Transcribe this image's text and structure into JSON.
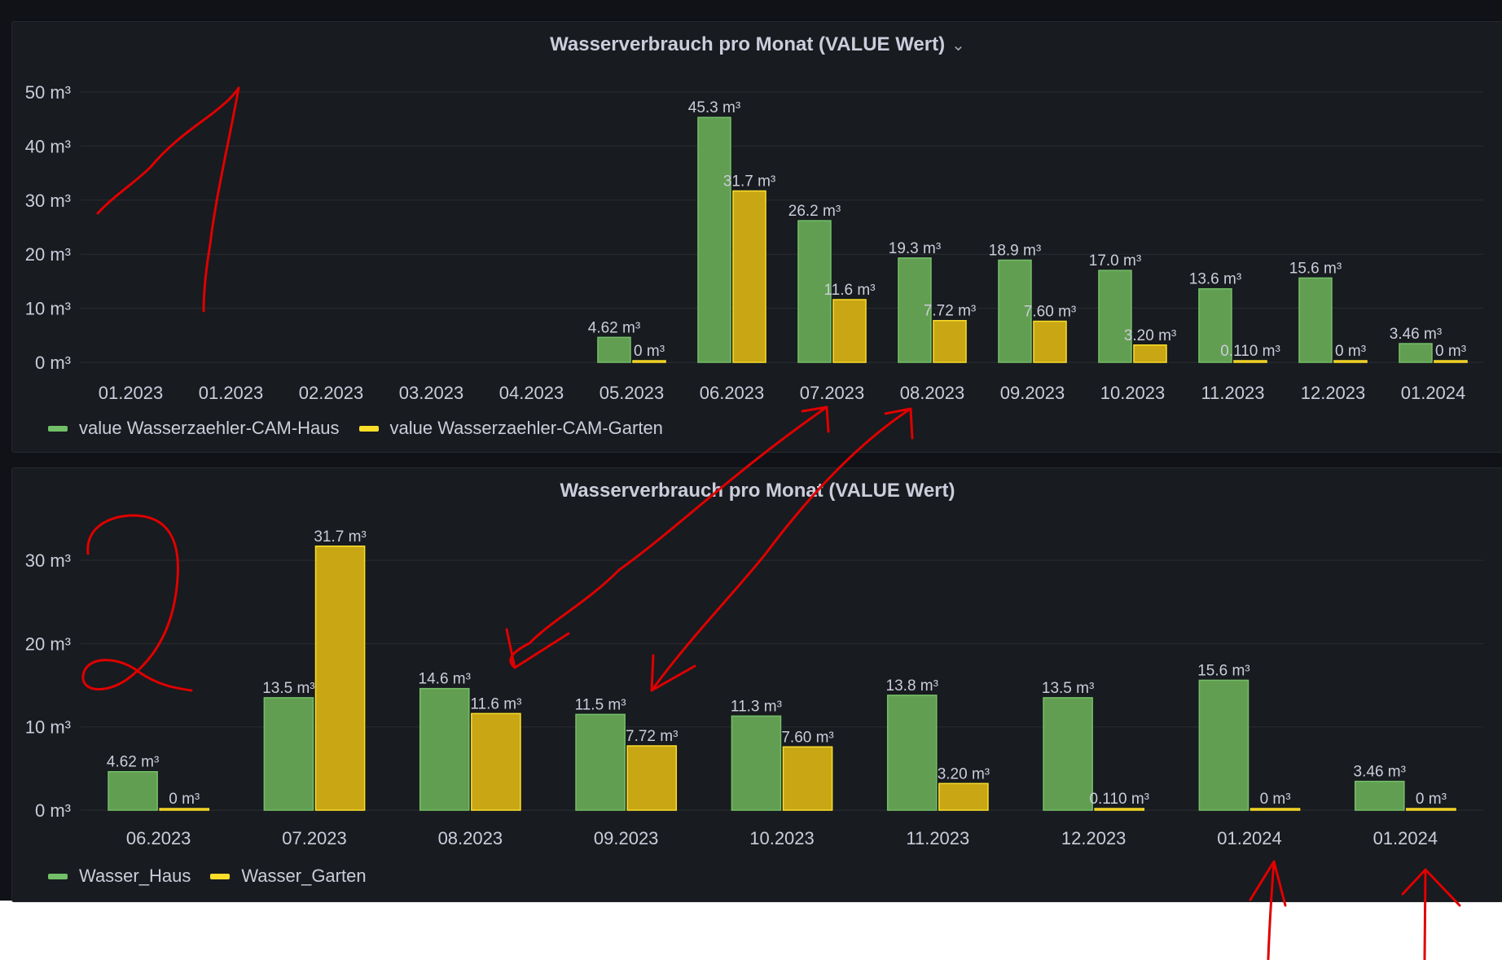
{
  "colors": {
    "series_a": "#73bf69",
    "series_b": "#fade2a",
    "bar_fill_a": "#629e51",
    "bar_fill_b": "#c8a614",
    "annotation": "#e00000"
  },
  "panels": [
    {
      "title": "Wasserverbrauch pro Monat (VALUE Wert)",
      "has_menu_chevron": true,
      "legend": [
        "value Wasserzaehler-CAM-Haus",
        "value Wasserzaehler-CAM-Garten"
      ]
    },
    {
      "title": "Wasserverbrauch pro Monat (VALUE Wert)",
      "has_menu_chevron": false,
      "legend": [
        "Wasser_Haus",
        "Wasser_Garten"
      ]
    }
  ],
  "chart_data": [
    {
      "type": "bar",
      "title": "Wasserverbrauch pro Monat (VALUE Wert)",
      "unit": "m³",
      "categories": [
        "01.2023",
        "01.2023",
        "02.2023",
        "03.2023",
        "04.2023",
        "05.2023",
        "06.2023",
        "07.2023",
        "08.2023",
        "09.2023",
        "10.2023",
        "11.2023",
        "12.2023",
        "01.2024"
      ],
      "ylim": [
        0,
        50
      ],
      "yticks": [
        0,
        10,
        20,
        30,
        40,
        50
      ],
      "ytick_labels": [
        "0 m³",
        "10 m³",
        "20 m³",
        "30 m³",
        "40 m³",
        "50 m³"
      ],
      "grid": true,
      "legend_position": "bottom-left",
      "series": [
        {
          "name": "value Wasserzaehler-CAM-Haus",
          "values": [
            null,
            null,
            null,
            null,
            null,
            4.62,
            45.3,
            26.2,
            19.3,
            18.9,
            17.0,
            13.6,
            15.6,
            3.46
          ],
          "labels": [
            "",
            "",
            "",
            "",
            "",
            "4.62 m³",
            "45.3 m³",
            "26.2 m³",
            "19.3 m³",
            "18.9 m³",
            "17.0 m³",
            "13.6 m³",
            "15.6 m³",
            "3.46 m³"
          ]
        },
        {
          "name": "value Wasserzaehler-CAM-Garten",
          "values": [
            null,
            null,
            null,
            null,
            null,
            0,
            31.7,
            11.6,
            7.72,
            7.6,
            3.2,
            0.11,
            0,
            0
          ],
          "labels": [
            "",
            "",
            "",
            "",
            "",
            "0 m³",
            "31.7 m³",
            "11.6 m³",
            "7.72 m³",
            "7.60 m³",
            "3.20 m³",
            "0.110 m³",
            "0 m³",
            "0 m³"
          ]
        }
      ]
    },
    {
      "type": "bar",
      "title": "Wasserverbrauch pro Monat (VALUE Wert)",
      "unit": "m³",
      "categories": [
        "06.2023",
        "07.2023",
        "08.2023",
        "09.2023",
        "10.2023",
        "11.2023",
        "12.2023",
        "01.2024",
        "01.2024"
      ],
      "ylim": [
        0,
        35
      ],
      "yticks": [
        0,
        10,
        20,
        30
      ],
      "ytick_labels": [
        "0 m³",
        "10 m³",
        "20 m³",
        "30 m³"
      ],
      "grid": true,
      "legend_position": "bottom-left",
      "series": [
        {
          "name": "Wasser_Haus",
          "values": [
            4.62,
            13.5,
            14.6,
            11.5,
            11.3,
            13.8,
            13.5,
            15.6,
            3.46
          ],
          "labels": [
            "4.62 m³",
            "13.5 m³",
            "14.6 m³",
            "11.5 m³",
            "11.3 m³",
            "13.8 m³",
            "13.5 m³",
            "15.6 m³",
            "3.46 m³"
          ]
        },
        {
          "name": "Wasser_Garten",
          "values": [
            0,
            31.7,
            11.6,
            7.72,
            7.6,
            3.2,
            0.11,
            0,
            0
          ],
          "labels": [
            "0 m³",
            "31.7 m³",
            "11.6 m³",
            "7.72 m³",
            "7.60 m³",
            "3.20 m³",
            "0.110 m³",
            "0 m³",
            "0 m³"
          ]
        }
      ]
    }
  ]
}
